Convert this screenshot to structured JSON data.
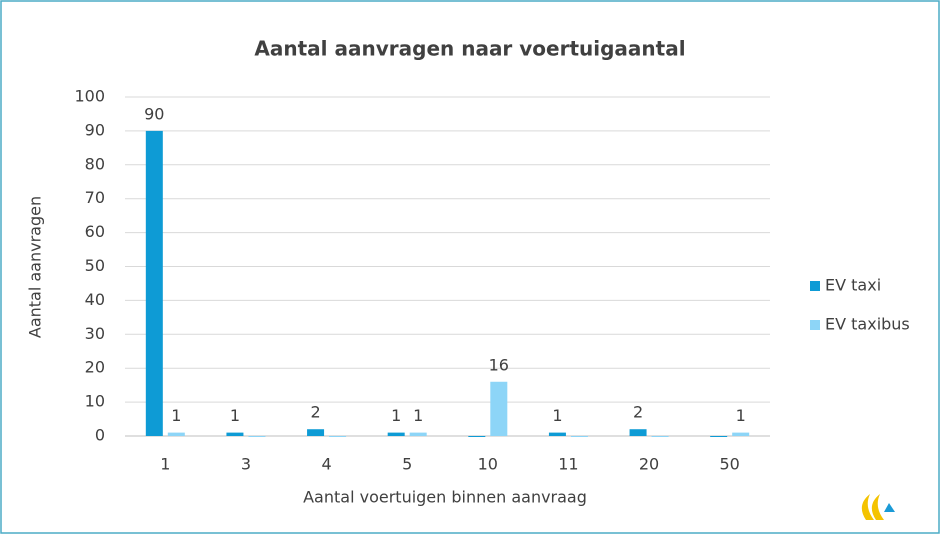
{
  "chart_data": {
    "type": "bar",
    "title": "Aantal aanvragen naar voertuigaantal",
    "x_label": "Aantal voertuigen binnen aanvraag",
    "y_label": "Aantal aanvragen",
    "categories": [
      "1",
      "3",
      "4",
      "5",
      "10",
      "11",
      "20",
      "50"
    ],
    "series": [
      {
        "name": "EV taxi",
        "color": "#0e9bd5",
        "values": [
          90,
          1,
          2,
          1,
          0,
          1,
          2,
          0
        ]
      },
      {
        "name": "EV taxibus",
        "color": "#8dd5f7",
        "values": [
          1,
          0,
          0,
          1,
          16,
          0,
          0,
          1
        ]
      }
    ],
    "ylim": [
      0,
      100
    ],
    "yticks": [
      0,
      10,
      20,
      30,
      40,
      50,
      60,
      70,
      80,
      90,
      100
    ],
    "grid": true,
    "legend": "right"
  }
}
